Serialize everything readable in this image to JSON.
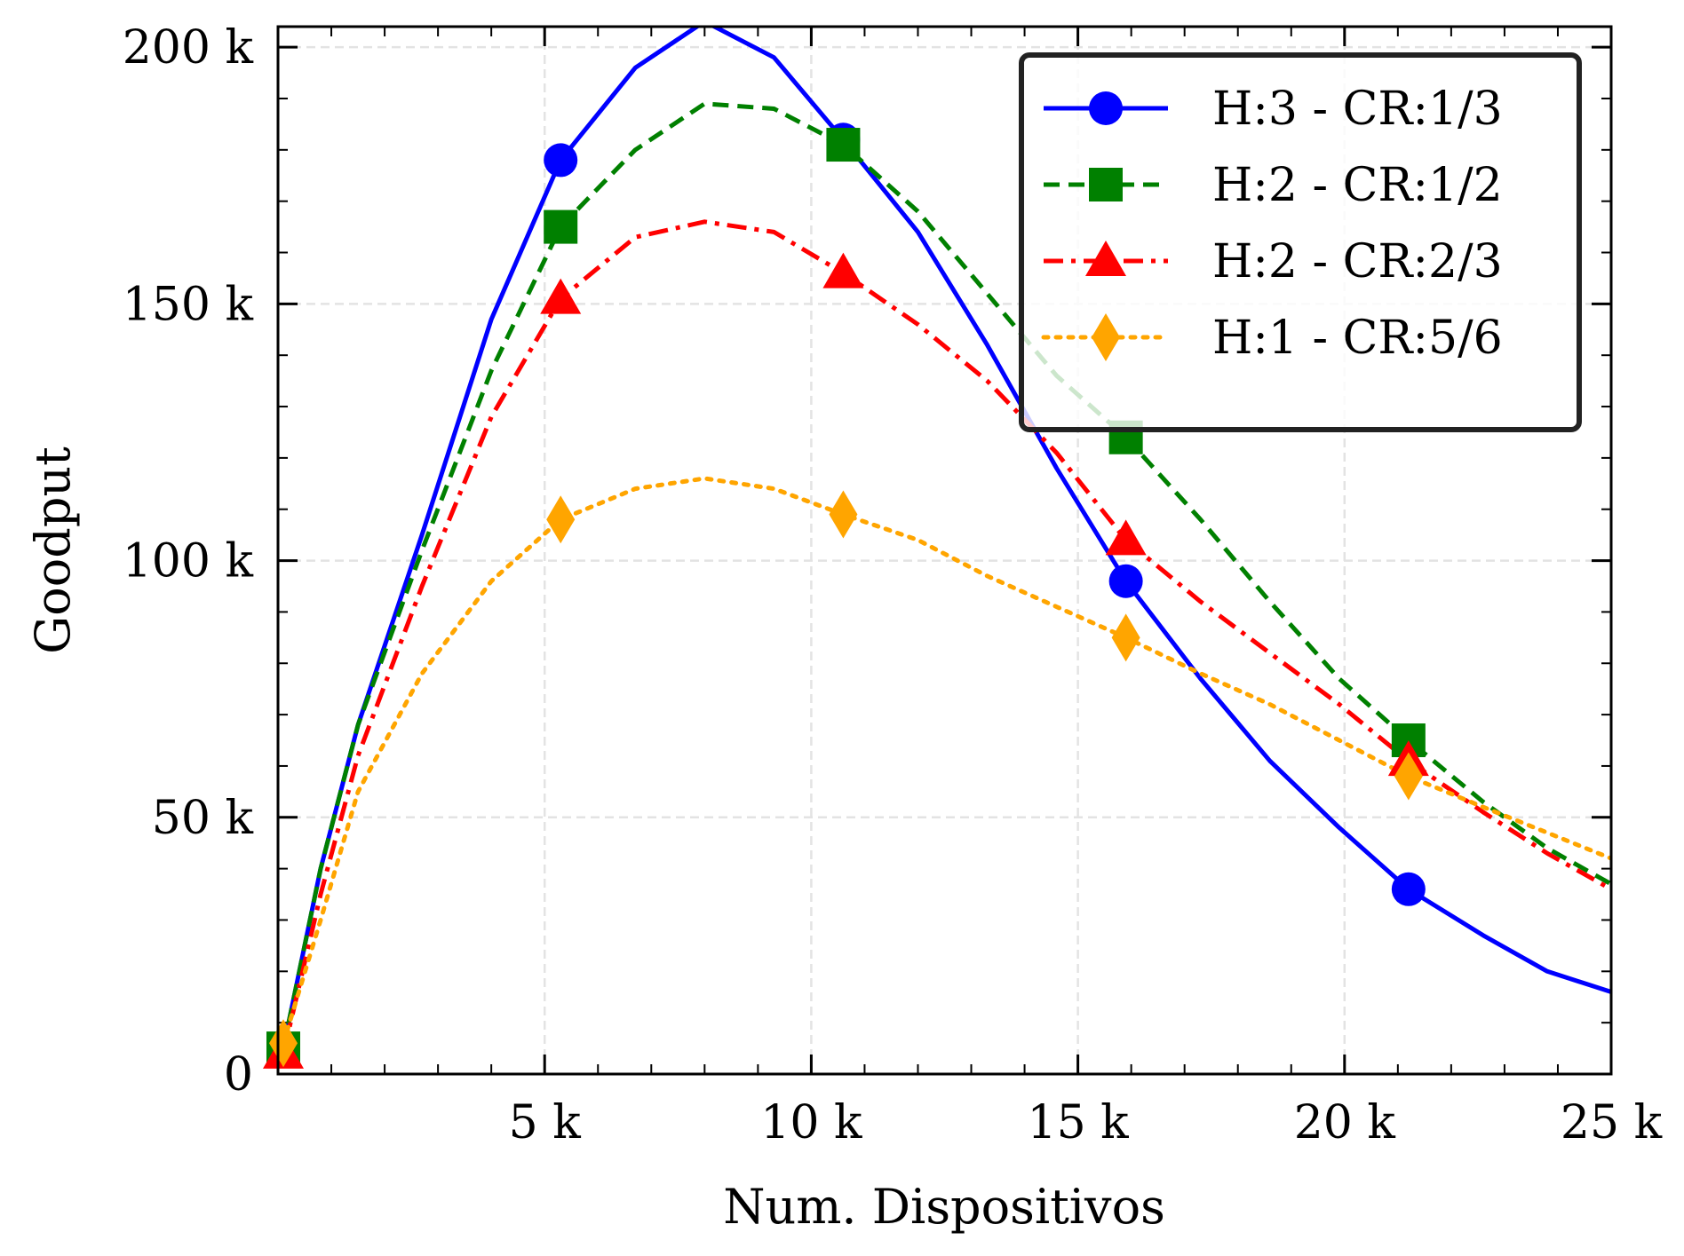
{
  "chart_data": {
    "type": "line",
    "xlabel": "Num. Dispositivos",
    "ylabel": "Goodput",
    "xlim": [
      0,
      25000
    ],
    "ylim": [
      0,
      204000
    ],
    "x_ticks": [
      {
        "value": 5000,
        "label": "5 k"
      },
      {
        "value": 10000,
        "label": "10 k"
      },
      {
        "value": 15000,
        "label": "15 k"
      },
      {
        "value": 20000,
        "label": "20 k"
      },
      {
        "value": 25000,
        "label": "25 k"
      }
    ],
    "y_ticks": [
      {
        "value": 0,
        "label": "0"
      },
      {
        "value": 50000,
        "label": "50 k"
      },
      {
        "value": 100000,
        "label": "100 k"
      },
      {
        "value": 150000,
        "label": "150 k"
      },
      {
        "value": 200000,
        "label": "200 k"
      }
    ],
    "grid": true,
    "legend_position": "top-right",
    "series": [
      {
        "name": "H:3 - CR:1/3",
        "color": "#0000ff",
        "dash": "solid",
        "marker": "circle",
        "x": [
          100,
          800,
          1500,
          2700,
          4000,
          5300,
          6700,
          8000,
          9300,
          10600,
          12000,
          13300,
          14600,
          15900,
          17300,
          18600,
          19900,
          21200,
          22600,
          23800,
          25000
        ],
        "y": [
          5000,
          40000,
          68000,
          105000,
          147000,
          178000,
          196000,
          205000,
          198000,
          182000,
          164000,
          142000,
          118000,
          96000,
          77000,
          61000,
          48000,
          36000,
          27000,
          20000,
          16000
        ],
        "markers_x": [
          5300,
          10600,
          15900,
          21200
        ],
        "markers_y": [
          178000,
          182000,
          96000,
          36000
        ]
      },
      {
        "name": "H:2 - CR:1/2",
        "color": "#008000",
        "dash": "dashed",
        "marker": "square",
        "x": [
          100,
          800,
          1500,
          2700,
          4000,
          5300,
          6700,
          8000,
          9300,
          10600,
          12000,
          13300,
          14600,
          15900,
          17300,
          18600,
          19900,
          21200,
          22600,
          23800,
          25000
        ],
        "y": [
          5000,
          40000,
          68000,
          102000,
          137000,
          165000,
          180000,
          189000,
          188000,
          181000,
          168000,
          152000,
          136000,
          124000,
          108000,
          92000,
          77000,
          65000,
          53000,
          44000,
          37000
        ],
        "markers_x": [
          5300,
          10600,
          15900,
          21200
        ],
        "markers_y": [
          165000,
          181000,
          124000,
          65000
        ]
      },
      {
        "name": "H:2 - CR:2/3",
        "color": "#ff0000",
        "dash": "dashdot",
        "marker": "triangle",
        "x": [
          100,
          800,
          1500,
          2700,
          4000,
          5300,
          6700,
          8000,
          9300,
          10600,
          12000,
          13300,
          14600,
          15900,
          17300,
          18600,
          19900,
          21200,
          22600,
          23800,
          25000
        ],
        "y": [
          4000,
          35000,
          62000,
          95000,
          128000,
          151000,
          163000,
          166000,
          164000,
          156000,
          146000,
          135000,
          121000,
          104000,
          92000,
          82000,
          72000,
          61000,
          51000,
          43000,
          36000
        ],
        "markers_x": [
          5300,
          10600,
          15900,
          21200
        ],
        "markers_y": [
          151000,
          156000,
          104000,
          61000
        ]
      },
      {
        "name": "H:1 - CR:5/6",
        "color": "#ffa500",
        "dash": "dotted",
        "marker": "diamond",
        "x": [
          100,
          800,
          1500,
          2700,
          4000,
          5300,
          6700,
          8000,
          9300,
          10600,
          12000,
          13300,
          14600,
          15900,
          17300,
          18600,
          19900,
          21200,
          22600,
          23800,
          25000
        ],
        "y": [
          6000,
          30000,
          55000,
          78000,
          96000,
          108000,
          114000,
          116000,
          114000,
          109000,
          104000,
          97000,
          91000,
          85000,
          78000,
          72000,
          65000,
          58000,
          52000,
          47000,
          42000
        ],
        "markers_x": [
          5300,
          10600,
          15900,
          21200
        ],
        "markers_y": [
          108000,
          109000,
          85000,
          58000
        ]
      }
    ]
  }
}
